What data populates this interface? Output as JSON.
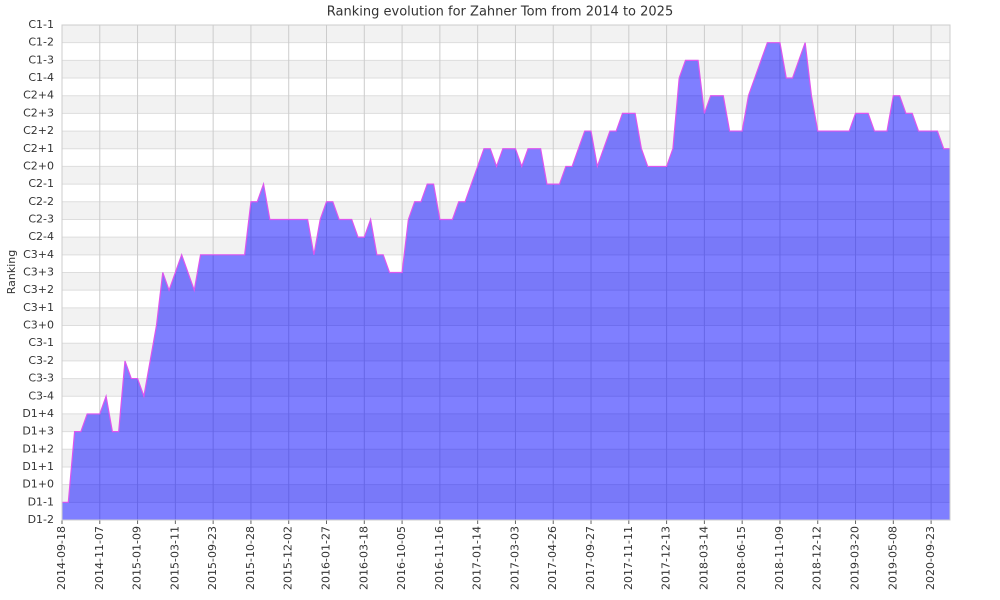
{
  "chart_data": {
    "type": "area",
    "title": "Ranking evolution for Zahner Tom from 2014 to 2025",
    "y_label": "Ranking",
    "ylim": [
      0,
      28
    ],
    "yticks": [
      {
        "value": 0,
        "label": "D1-2"
      },
      {
        "value": 1,
        "label": "D1-1"
      },
      {
        "value": 2,
        "label": "D1+0"
      },
      {
        "value": 3,
        "label": "D1+1"
      },
      {
        "value": 4,
        "label": "D1+2"
      },
      {
        "value": 5,
        "label": "D1+3"
      },
      {
        "value": 6,
        "label": "D1+4"
      },
      {
        "value": 7,
        "label": "C3-4"
      },
      {
        "value": 8,
        "label": "C3-3"
      },
      {
        "value": 9,
        "label": "C3-2"
      },
      {
        "value": 10,
        "label": "C3-1"
      },
      {
        "value": 11,
        "label": "C3+0"
      },
      {
        "value": 12,
        "label": "C3+1"
      },
      {
        "value": 13,
        "label": "C3+2"
      },
      {
        "value": 14,
        "label": "C3+3"
      },
      {
        "value": 15,
        "label": "C3+4"
      },
      {
        "value": 16,
        "label": "C2-4"
      },
      {
        "value": 17,
        "label": "C2-3"
      },
      {
        "value": 18,
        "label": "C2-2"
      },
      {
        "value": 19,
        "label": "C2-1"
      },
      {
        "value": 20,
        "label": "C2+0"
      },
      {
        "value": 21,
        "label": "C2+1"
      },
      {
        "value": 22,
        "label": "C2+2"
      },
      {
        "value": 23,
        "label": "C2+3"
      },
      {
        "value": 24,
        "label": "C2+4"
      },
      {
        "value": 25,
        "label": "C1-4"
      },
      {
        "value": 26,
        "label": "C1-3"
      },
      {
        "value": 27,
        "label": "C1-2"
      },
      {
        "value": 28,
        "label": "C1-1"
      }
    ],
    "categories": [
      "2014-09-18",
      null,
      null,
      null,
      null,
      null,
      "2014-11-07",
      null,
      null,
      null,
      null,
      null,
      "2015-01-09",
      null,
      null,
      null,
      null,
      null,
      "2015-03-11",
      null,
      null,
      null,
      null,
      null,
      "2015-09-23",
      null,
      null,
      null,
      null,
      null,
      "2015-10-28",
      null,
      null,
      null,
      null,
      null,
      "2015-12-02",
      null,
      null,
      null,
      null,
      null,
      "2016-01-27",
      null,
      null,
      null,
      null,
      null,
      "2016-03-18",
      null,
      null,
      null,
      null,
      null,
      "2016-10-05",
      null,
      null,
      null,
      null,
      null,
      "2016-11-16",
      null,
      null,
      null,
      null,
      null,
      "2017-01-14",
      null,
      null,
      null,
      null,
      null,
      "2017-03-03",
      null,
      null,
      null,
      null,
      null,
      "2017-04-26",
      null,
      null,
      null,
      null,
      null,
      "2017-09-27",
      null,
      null,
      null,
      null,
      null,
      "2017-11-11",
      null,
      null,
      null,
      null,
      null,
      "2017-12-13",
      null,
      null,
      null,
      null,
      null,
      "2018-03-14",
      null,
      null,
      null,
      null,
      null,
      "2018-06-15",
      null,
      null,
      null,
      null,
      null,
      "2018-11-09",
      null,
      null,
      null,
      null,
      null,
      "2018-12-12",
      null,
      null,
      null,
      null,
      null,
      "2019-03-20",
      null,
      null,
      null,
      null,
      null,
      "2019-05-08",
      null,
      null,
      null,
      null,
      null,
      "2020-09-23",
      null,
      null,
      null
    ],
    "values": [
      1,
      1,
      5,
      5,
      6,
      6,
      6,
      7,
      5,
      5,
      9,
      8,
      8,
      7,
      9,
      11,
      14,
      13,
      14,
      15,
      14,
      13,
      15,
      15,
      15,
      15,
      15,
      15,
      15,
      15,
      18,
      18,
      19,
      17,
      17,
      17,
      17,
      17,
      17,
      17,
      15,
      17,
      18,
      18,
      17,
      17,
      17,
      16,
      16,
      17,
      15,
      15,
      14,
      14,
      14,
      17,
      18,
      18,
      19,
      19,
      17,
      17,
      17,
      18,
      18,
      19,
      20,
      21,
      21,
      20,
      21,
      21,
      21,
      20,
      21,
      21,
      21,
      19,
      19,
      19,
      20,
      20,
      21,
      22,
      22,
      20,
      21,
      22,
      22,
      23,
      23,
      23,
      21,
      20,
      20,
      20,
      20,
      21,
      25,
      26,
      26,
      26,
      23,
      24,
      24,
      24,
      22,
      22,
      22,
      24,
      25,
      26,
      27,
      27,
      27,
      25,
      25,
      26,
      27,
      24,
      22,
      22,
      22,
      22,
      22,
      22,
      23,
      23,
      23,
      22,
      22,
      22,
      24,
      24,
      23,
      23,
      22,
      22,
      22,
      22,
      21,
      21
    ],
    "fill_color": "rgba(0,0,255,0.5)",
    "line_color": "#dd55ee",
    "grid": true
  }
}
